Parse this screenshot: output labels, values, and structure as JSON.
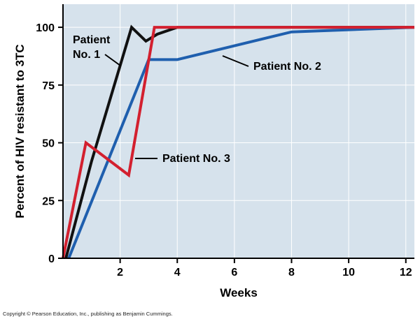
{
  "chart_data": {
    "type": "line",
    "title": "",
    "xlabel": "Weeks",
    "ylabel": "Percent of HIV resistant to 3TC",
    "xlim": [
      0,
      12.3
    ],
    "ylim": [
      0,
      110
    ],
    "xticks": [
      2,
      4,
      6,
      8,
      10,
      12
    ],
    "yticks": [
      0,
      25,
      50,
      75,
      100
    ],
    "grid": true,
    "legend": "none",
    "colors": {
      "plot_background": "#d6e2ec",
      "grid": "#ffffff"
    },
    "series": [
      {
        "name": "Patient No. 1",
        "label": "Patient\nNo. 1",
        "color": "#111111",
        "x": [
          0.1,
          1.0,
          2.4,
          2.9,
          3.3,
          4.0,
          12.3
        ],
        "y": [
          0,
          42,
          100,
          94,
          97,
          100,
          100
        ]
      },
      {
        "name": "Patient No. 2",
        "label": "Patient No. 2",
        "color": "#1f5fae",
        "x": [
          0.2,
          3.0,
          4.0,
          6.0,
          8.0,
          12.3
        ],
        "y": [
          0,
          86,
          86,
          92,
          98,
          100
        ]
      },
      {
        "name": "Patient No. 3",
        "label": "Patient No. 3",
        "color": "#d3202f",
        "x": [
          0.0,
          0.8,
          2.3,
          3.2,
          4.0,
          12.3
        ],
        "y": [
          0,
          50,
          36,
          100,
          100,
          100
        ]
      }
    ]
  },
  "copyright": "Copyright © Pearson Education, Inc., publishing as Benjamin Cummings."
}
